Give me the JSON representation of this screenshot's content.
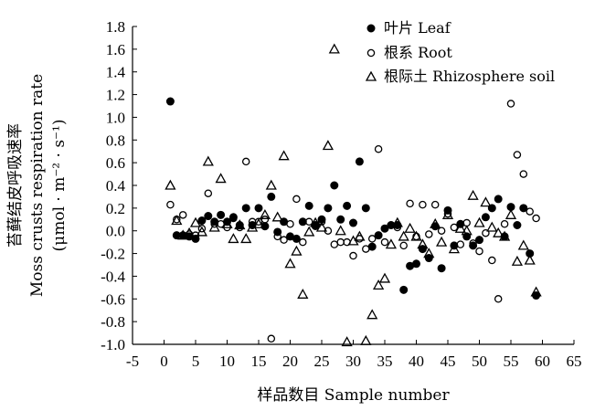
{
  "chart_data": {
    "type": "scatter",
    "xlabel": "样品数目 Sample number",
    "ylabel_line1": "苔藓结皮呼吸速率",
    "ylabel_line2": "Moss crusts respiration rate",
    "ylabel_line3": "(μmol · m⁻² · s⁻¹)",
    "xlim": [
      -5,
      65
    ],
    "ylim": [
      -1.0,
      1.8
    ],
    "xticks": [
      "-5",
      "0",
      "5",
      "10",
      "15",
      "20",
      "25",
      "30",
      "35",
      "40",
      "45",
      "50",
      "55",
      "60",
      "65"
    ],
    "yticks": [
      "1.8",
      "1.6",
      "1.4",
      "1.2",
      "1.0",
      "0.8",
      "0.6",
      "0.4",
      "0.2",
      "0.0",
      "-0.2",
      "-0.4",
      "-0.6",
      "-0.8",
      "-1.0"
    ],
    "legend_position": "top-right",
    "series": [
      {
        "name": "叶片 Leaf",
        "marker": "filled-circle",
        "x": [
          1,
          2,
          3,
          4,
          5,
          6,
          7,
          8,
          9,
          10,
          11,
          12,
          13,
          14,
          15,
          16,
          17,
          18,
          19,
          20,
          21,
          22,
          23,
          24,
          25,
          26,
          27,
          28,
          29,
          30,
          31,
          32,
          33,
          34,
          35,
          36,
          37,
          38,
          39,
          40,
          41,
          42,
          43,
          44,
          45,
          46,
          47,
          48,
          49,
          50,
          51,
          52,
          53,
          54,
          55,
          56,
          57,
          58,
          59
        ],
        "y": [
          1.14,
          -0.04,
          -0.04,
          -0.05,
          -0.07,
          0.09,
          0.13,
          0.08,
          0.14,
          0.08,
          0.12,
          0.05,
          0.2,
          0.05,
          0.2,
          0.04,
          0.3,
          -0.01,
          0.08,
          -0.05,
          -0.07,
          0.08,
          0.22,
          0.05,
          0.1,
          0.2,
          0.4,
          0.1,
          0.22,
          0.07,
          0.61,
          0.2,
          -0.14,
          -0.04,
          0.02,
          0.05,
          0.05,
          -0.52,
          -0.31,
          -0.29,
          -0.16,
          -0.24,
          0.04,
          -0.33,
          0.18,
          -0.13,
          0.06,
          -0.05,
          -0.13,
          -0.08,
          0.12,
          0.2,
          0.28,
          -0.05,
          0.21,
          0.05,
          0.2,
          -0.2,
          -0.57
        ]
      },
      {
        "name": "根系 Root",
        "marker": "open-circle",
        "x": [
          1,
          2,
          3,
          4,
          5,
          6,
          7,
          8,
          9,
          10,
          11,
          12,
          13,
          14,
          15,
          16,
          17,
          18,
          19,
          20,
          21,
          22,
          23,
          24,
          25,
          26,
          27,
          28,
          29,
          30,
          31,
          32,
          33,
          34,
          35,
          36,
          37,
          38,
          39,
          40,
          41,
          42,
          43,
          44,
          45,
          46,
          47,
          48,
          49,
          50,
          51,
          52,
          53,
          54,
          55,
          56,
          57,
          58,
          59
        ],
        "y": [
          0.23,
          0.1,
          0.14,
          -0.03,
          -0.04,
          0.02,
          0.33,
          0.06,
          0.06,
          0.03,
          0.11,
          0.03,
          0.61,
          0.08,
          0.08,
          0.1,
          -0.95,
          -0.05,
          -0.08,
          0.06,
          0.28,
          -0.1,
          0.08,
          0.04,
          0.08,
          0.0,
          -0.12,
          -0.1,
          -0.1,
          -0.22,
          -0.07,
          -0.16,
          -0.07,
          0.72,
          -0.1,
          0.05,
          0.03,
          -0.13,
          0.24,
          -0.05,
          0.23,
          -0.03,
          0.23,
          0.0,
          0.15,
          0.03,
          -0.12,
          0.07,
          -0.11,
          -0.18,
          -0.02,
          -0.26,
          -0.6,
          0.06,
          1.12,
          0.67,
          0.5,
          0.17,
          0.11
        ]
      },
      {
        "name": "根际土 Rhizosphere soil",
        "marker": "open-triangle",
        "x": [
          1,
          2,
          3,
          4,
          5,
          6,
          7,
          8,
          9,
          10,
          11,
          12,
          13,
          14,
          15,
          16,
          17,
          18,
          19,
          20,
          21,
          22,
          23,
          24,
          25,
          26,
          27,
          28,
          29,
          30,
          31,
          32,
          33,
          34,
          35,
          36,
          37,
          38,
          39,
          40,
          41,
          42,
          43,
          44,
          45,
          46,
          47,
          48,
          49,
          50,
          51,
          52,
          53,
          54,
          55,
          56,
          57,
          58,
          59
        ],
        "y": [
          0.4,
          0.09,
          -0.04,
          -0.02,
          0.07,
          -0.01,
          0.61,
          0.03,
          0.46,
          0.06,
          -0.07,
          0.05,
          -0.07,
          0.03,
          0.06,
          0.14,
          0.4,
          0.12,
          0.66,
          -0.29,
          -0.18,
          -0.56,
          -0.01,
          0.07,
          0.03,
          0.75,
          1.6,
          0.0,
          -0.98,
          -0.09,
          -0.05,
          -0.97,
          -0.74,
          -0.48,
          -0.42,
          -0.12,
          0.07,
          -0.05,
          0.02,
          -0.05,
          -0.12,
          -0.2,
          0.06,
          -0.1,
          0.14,
          -0.16,
          0.02,
          0.0,
          0.31,
          0.07,
          0.25,
          0.03,
          -0.02,
          -0.05,
          0.14,
          -0.27,
          -0.13,
          -0.26,
          -0.54
        ]
      }
    ]
  }
}
